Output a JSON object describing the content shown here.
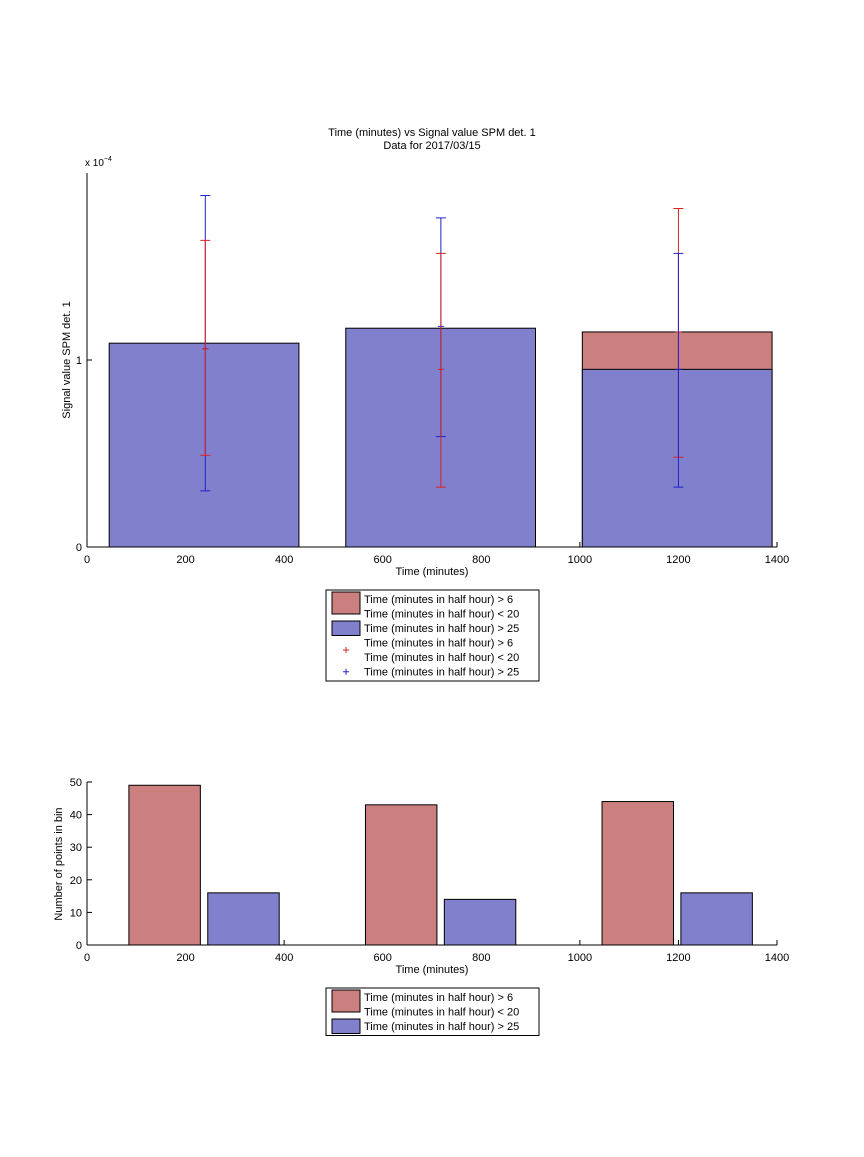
{
  "colors": {
    "red_fill": "#cc7f7f",
    "blue_fill": "#8080cc",
    "red_err": "#dd2222",
    "blue_err": "#2222cc"
  },
  "chart_data": [
    {
      "type": "bar",
      "title": "Time (minutes) vs Signal value SPM det. 1",
      "subtitle": "Data for 2017/03/15",
      "xlabel": "Time (minutes)",
      "ylabel": "Signal value SPM det. 1",
      "exponent_label": "x 10",
      "exponent_power": "−4",
      "xlim": [
        0,
        1400
      ],
      "ylim": [
        0,
        2.0
      ],
      "xticks": [
        0,
        200,
        400,
        600,
        800,
        1000,
        1200,
        1400
      ],
      "yticks": [
        0,
        1
      ],
      "grid": false,
      "stacked": true,
      "bars": [
        {
          "x_start": 45,
          "x_end": 430,
          "red": 0.0,
          "blue": 1.09
        },
        {
          "x_start": 525,
          "x_end": 910,
          "red": 0.0,
          "blue": 1.17
        },
        {
          "x_start": 1005,
          "x_end": 1390,
          "red": 1.15,
          "blue": 0.95
        }
      ],
      "errorbars": [
        {
          "series": "blue",
          "x": 240,
          "y": 1.06,
          "low": 0.3,
          "high": 1.88
        },
        {
          "series": "red",
          "x": 240,
          "y": 1.06,
          "low": 0.49,
          "high": 1.64
        },
        {
          "series": "blue",
          "x": 718,
          "y": 1.18,
          "low": 0.59,
          "high": 1.76
        },
        {
          "series": "red",
          "x": 718,
          "y": 0.95,
          "low": 0.32,
          "high": 1.57
        },
        {
          "series": "red",
          "x": 1200,
          "y": 1.15,
          "low": 0.48,
          "high": 1.81
        },
        {
          "series": "blue",
          "x": 1200,
          "y": 0.95,
          "low": 0.32,
          "high": 1.57
        }
      ],
      "legend": {
        "placement": "below",
        "entries": [
          {
            "marker": "patch-red",
            "lines": [
              "Time (minutes in half hour) > 6",
              "Time (minutes in half hour) < 20"
            ]
          },
          {
            "marker": "patch-blue",
            "lines": [
              "Time (minutes in half hour) > 25"
            ]
          },
          {
            "marker": "plus-red",
            "lines": [
              "Time (minutes in half hour) > 6",
              "Time (minutes in half hour) < 20"
            ]
          },
          {
            "marker": "plus-blue",
            "lines": [
              "Time (minutes in half hour) > 25"
            ]
          }
        ]
      }
    },
    {
      "type": "bar",
      "title": "",
      "xlabel": "Time (minutes)",
      "ylabel": "Number of points in bin",
      "xlim": [
        0,
        1400
      ],
      "ylim": [
        0,
        50
      ],
      "xticks": [
        0,
        200,
        400,
        600,
        800,
        1000,
        1200,
        1400
      ],
      "yticks": [
        0,
        10,
        20,
        30,
        40,
        50
      ],
      "grid": false,
      "bars": [
        {
          "series": "red",
          "x_start": 85,
          "x_end": 230,
          "value": 49
        },
        {
          "series": "blue",
          "x_start": 245,
          "x_end": 390,
          "value": 16
        },
        {
          "series": "red",
          "x_start": 565,
          "x_end": 710,
          "value": 43
        },
        {
          "series": "blue",
          "x_start": 725,
          "x_end": 870,
          "value": 14
        },
        {
          "series": "red",
          "x_start": 1045,
          "x_end": 1190,
          "value": 44
        },
        {
          "series": "blue",
          "x_start": 1205,
          "x_end": 1350,
          "value": 16
        }
      ],
      "legend": {
        "placement": "below",
        "entries": [
          {
            "marker": "patch-red",
            "lines": [
              "Time (minutes in half hour) > 6",
              "Time (minutes in half hour) < 20"
            ]
          },
          {
            "marker": "patch-blue",
            "lines": [
              "Time (minutes in half hour) > 25"
            ]
          }
        ]
      }
    }
  ]
}
